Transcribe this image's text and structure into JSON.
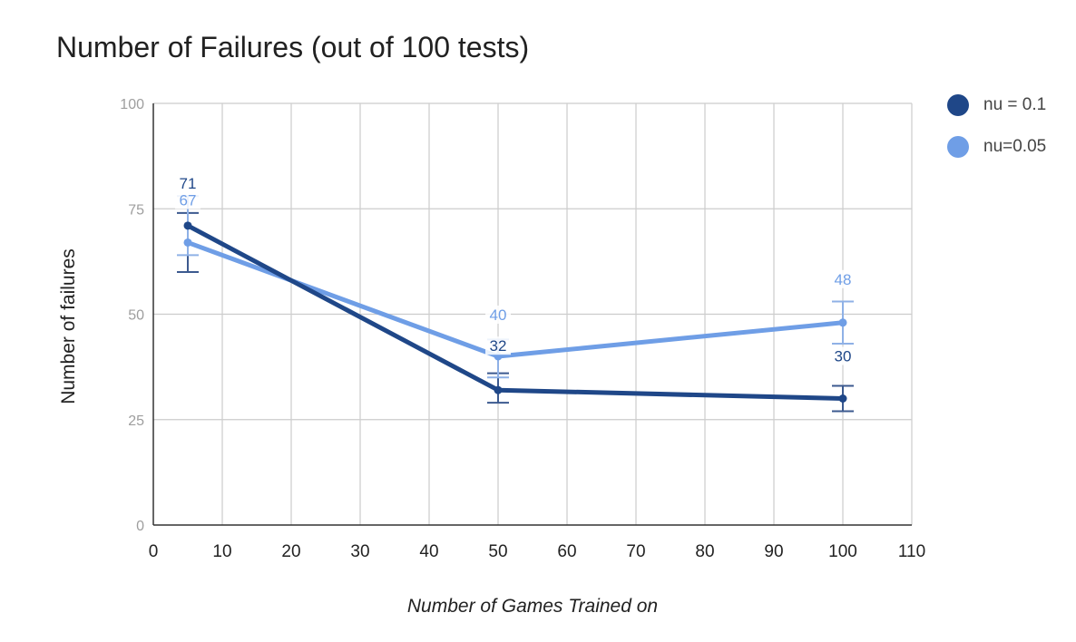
{
  "chart_data": {
    "type": "line",
    "title": "Number of Failures (out of 100 tests)",
    "xlabel": "Number of Games Trained on",
    "ylabel": "Number of failures",
    "xlim": [
      0,
      110
    ],
    "ylim": [
      0,
      100
    ],
    "x_ticks": [
      "0",
      "10",
      "20",
      "30",
      "40",
      "50",
      "60",
      "70",
      "80",
      "90",
      "100",
      "110"
    ],
    "y_ticks": [
      "0",
      "25",
      "50",
      "75",
      "100"
    ],
    "grid": true,
    "legend_position": "right",
    "x": [
      5,
      50,
      100
    ],
    "series": [
      {
        "name": "nu = 0.1",
        "color": "#1f4788",
        "values": [
          71,
          32,
          30
        ],
        "error_low": [
          60,
          29,
          27
        ],
        "error_high": [
          74,
          36,
          33
        ],
        "labels": [
          "71",
          "32",
          "30"
        ]
      },
      {
        "name": "nu=0.05",
        "color": "#6f9ee6",
        "values": [
          67,
          40,
          48
        ],
        "error_low": [
          64,
          35,
          43
        ],
        "error_high": [
          78,
          44,
          53
        ],
        "labels": [
          "67",
          "40",
          "48"
        ]
      }
    ]
  }
}
